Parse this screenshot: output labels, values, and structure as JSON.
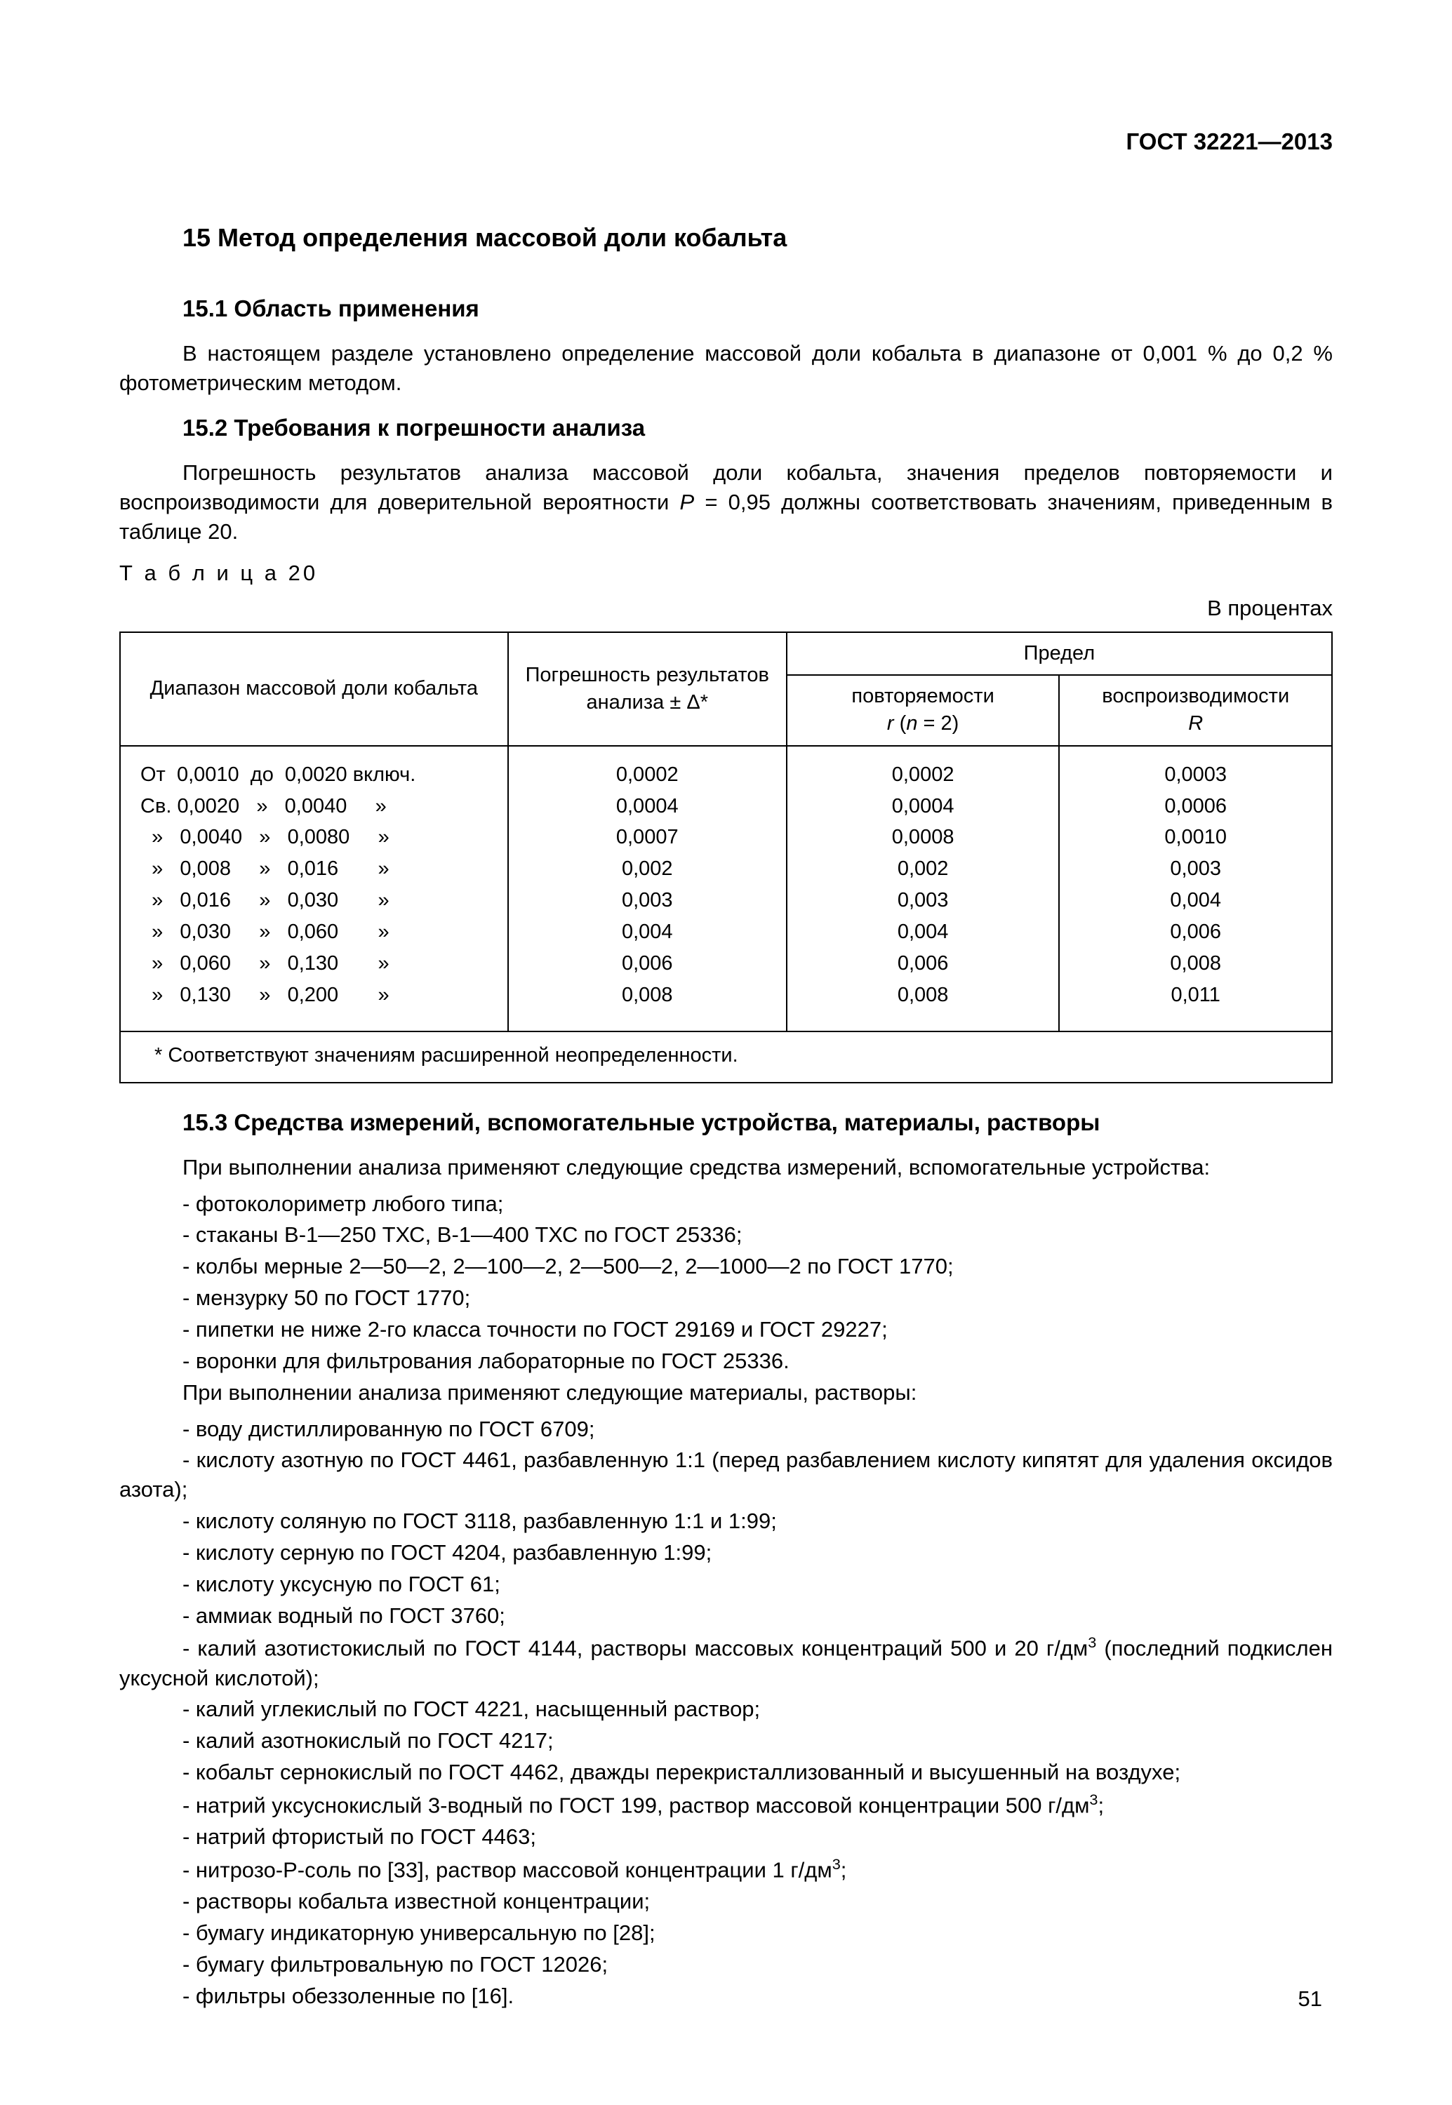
{
  "docHeader": "ГОСТ 32221—2013",
  "sectionTitle": "15 Метод определения массовой доли кобальта",
  "s15_1_title": "15.1 Область применения",
  "s15_1_p": "В настоящем разделе установлено определение массовой доли кобальта в диапазоне от 0,001 % до 0,2 % фотометрическим методом.",
  "s15_2_title": "15.2 Требования к погрешности анализа",
  "s15_2_p": "Погрешность результатов анализа массовой доли кобальта, значения пределов повторяемости и воспроизводимости для доверительной вероятности P = 0,95 должны соответствовать значениям, приведенным в таблице 20.",
  "tableCaption": "Т а б л и ц а  20",
  "tableUnit": "В процентах",
  "th_range": "Диапазон массовой доли кобальта",
  "th_err": "Погрешность результатов анализа ± Δ*",
  "th_limit": "Предел",
  "th_r_small_1": "повторяемости",
  "th_r_small_2": "r (n = 2)",
  "th_R_big_1": "воспроизводимости",
  "th_R_big_2": "R",
  "rows": [
    {
      "range": "От  0,0010  до  0,0020 включ.",
      "d": "0,0002",
      "r": "0,0002",
      "R": "0,0003"
    },
    {
      "range": "Св. 0,0020   »   0,0040     »",
      "d": "0,0004",
      "r": "0,0004",
      "R": "0,0006"
    },
    {
      "range": "  »   0,0040   »   0,0080     »",
      "d": "0,0007",
      "r": "0,0008",
      "R": "0,0010"
    },
    {
      "range": "  »   0,008     »   0,016       »",
      "d": "0,002",
      "r": "0,002",
      "R": "0,003"
    },
    {
      "range": "  »   0,016     »   0,030       »",
      "d": "0,003",
      "r": "0,003",
      "R": "0,004"
    },
    {
      "range": "  »   0,030     »   0,060       »",
      "d": "0,004",
      "r": "0,004",
      "R": "0,006"
    },
    {
      "range": "  »   0,060     »   0,130       »",
      "d": "0,006",
      "r": "0,006",
      "R": "0,008"
    },
    {
      "range": "  »   0,130     »   0,200       »",
      "d": "0,008",
      "r": "0,008",
      "R": "0,011"
    }
  ],
  "footnote": "* Соответствуют значениям расширенной неопределенности.",
  "s15_3_title": "15.3 Средства измерений, вспомогательные устройства, материалы, растворы",
  "s15_3_lead": "При выполнении анализа применяют следующие средства измерений, вспомогательные устройства:",
  "items1": [
    "- фотоколориметр любого типа;",
    "- стаканы В-1—250 ТХС, В-1—400 ТХС по ГОСТ 25336;",
    "- колбы мерные 2—50—2, 2—100—2, 2—500—2, 2—1000—2 по ГОСТ 1770;",
    "- мензурку 50 по ГОСТ 1770;",
    "- пипетки не ниже 2-го класса точности по ГОСТ 29169 и ГОСТ 29227;",
    "- воронки для фильтрования лабораторные по ГОСТ 25336."
  ],
  "s15_3_lead2": "При выполнении анализа применяют следующие материалы, растворы:",
  "items2": [
    "- воду дистиллированную по ГОСТ 6709;",
    "- кислоту азотную по ГОСТ 4461, разбавленную 1:1 (перед разбавлением кислоту кипятят для удаления оксидов азота);",
    "- кислоту соляную по ГОСТ 3118, разбавленную 1:1 и 1:99;",
    "- кислоту серную по ГОСТ 4204, разбавленную 1:99;",
    "- кислоту уксусную по ГОСТ 61;",
    "- аммиак водный по ГОСТ 3760;",
    "- калий азотистокислый по ГОСТ 4144, растворы массовых концентраций 500 и 20 г/дм³ (последний подкислен уксусной кислотой);",
    "- калий углекислый по ГОСТ 4221, насыщенный раствор;",
    "- калий азотнокислый по ГОСТ 4217;",
    "- кобальт сернокислый по ГОСТ 4462, дважды перекристаллизованный и высушенный на воздухе;",
    "- натрий уксуснокислый 3-водный по ГОСТ 199, раствор массовой концентрации 500 г/дм³;",
    "- натрий фтористый по ГОСТ 4463;",
    "- нитрозо-Р-соль по [33], раствор массовой концентрации 1 г/дм³;",
    "- растворы кобальта известной концентрации;",
    "- бумагу индикаторную универсальную по [28];",
    "- бумагу фильтровальную по ГОСТ 12026;",
    "- фильтры обеззоленные по [16]."
  ],
  "pageNum": "51",
  "colors": {
    "border": "#000000",
    "text": "#000000",
    "bg": "#ffffff"
  }
}
